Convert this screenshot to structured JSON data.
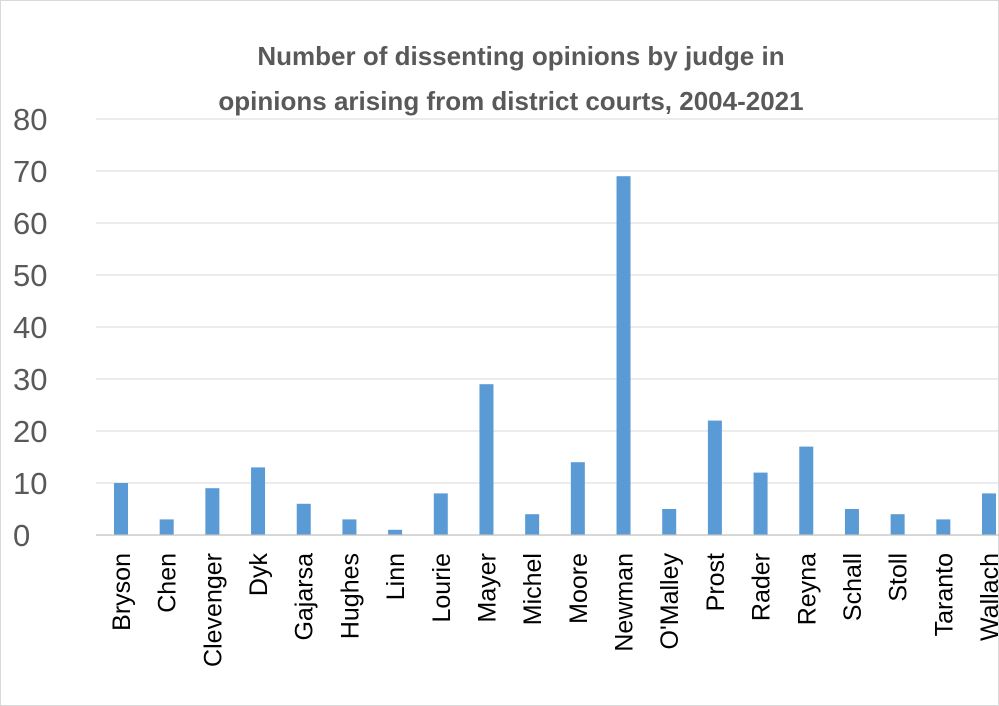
{
  "chart_data": {
    "type": "bar",
    "title_lines": [
      "Number of dissenting opinions by judge in",
      "opinions arising from district courts, 2004-2021"
    ],
    "categories": [
      "Bryson",
      "Chen",
      "Clevenger",
      "Dyk",
      "Gajarsa",
      "Hughes",
      "Linn",
      "Lourie",
      "Mayer",
      "Michel",
      "Moore",
      "Newman",
      "O'Malley",
      "Prost",
      "Rader",
      "Reyna",
      "Schall",
      "Stoll",
      "Taranto",
      "Wallach"
    ],
    "values": [
      10,
      3,
      9,
      13,
      6,
      3,
      1,
      8,
      29,
      4,
      14,
      69,
      5,
      22,
      12,
      17,
      5,
      4,
      3,
      8
    ],
    "ylim": [
      0,
      80
    ],
    "yticks": [
      "0",
      "10",
      "20",
      "30",
      "40",
      "50",
      "60",
      "70",
      "80"
    ],
    "xlabel": "",
    "ylabel": "",
    "bar_color": "#5b9bd5",
    "grid": true,
    "legend": "none"
  }
}
